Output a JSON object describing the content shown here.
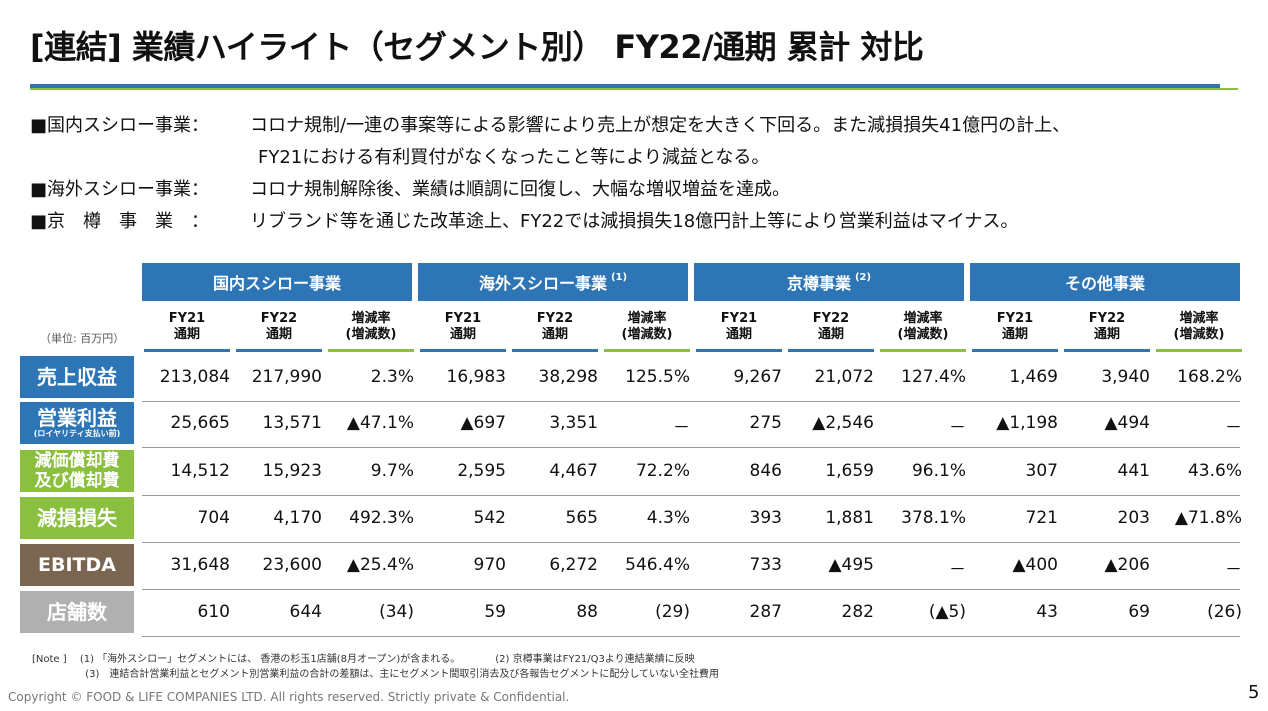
{
  "title": "[連結] 業績ハイライト（セグメント別） FY22/通期  累計 対比",
  "bullets": [
    {
      "head": "■国内スシロー事業：",
      "text": "コロナ規制/一連の事案等による影響により売上が想定を大きく下回る。また減損損失41億円の計上、"
    },
    {
      "head": "",
      "text": "FY21における有利買付がなくなったこと等により減益となる。"
    },
    {
      "head": "■海外スシロー事業：",
      "text": "コロナ規制解除後、業績は順調に回復し、大幅な増収増益を達成。"
    },
    {
      "head": "■京　樽　事　業　：",
      "text": "リブランド等を通じた改革途上、FY22では減損損失18億円計上等により営業利益はマイナス。"
    }
  ],
  "unit_label": "（単位: 百万円）",
  "segments": [
    {
      "name": "国内スシロー事業",
      "note": ""
    },
    {
      "name": "海外スシロー事業",
      "note": "(1)"
    },
    {
      "name": "京樽事業",
      "note": "(2)"
    },
    {
      "name": "その他事業",
      "note": ""
    }
  ],
  "col_headers": {
    "fy21_line1": "FY21",
    "fy21_line2": "通期",
    "fy22_line1": "FY22",
    "fy22_line2": "通期",
    "rate_line1": "増減率",
    "rate_line2": "(増減数)"
  },
  "rows": [
    {
      "label": "売上収益",
      "sublabel": "",
      "color": "#2e75b6",
      "values": [
        "213,084",
        "217,990",
        "2.3%",
        "16,983",
        "38,298",
        "125.5%",
        "9,267",
        "21,072",
        "127.4%",
        "1,469",
        "3,940",
        "168.2%"
      ]
    },
    {
      "label": "営業利益",
      "sublabel": "(ロイヤリティ支払い前)",
      "color": "#2e75b6",
      "values": [
        "25,665",
        "13,571",
        "▲47.1%",
        "▲697",
        "3,351",
        "－",
        "275",
        "▲2,546",
        "－",
        "▲1,198",
        "▲494",
        "－"
      ]
    },
    {
      "label": "減価償却費",
      "sublabel": "及び償却費",
      "color": "#8bbf3f",
      "values": [
        "14,512",
        "15,923",
        "9.7%",
        "2,595",
        "4,467",
        "72.2%",
        "846",
        "1,659",
        "96.1%",
        "307",
        "441",
        "43.6%"
      ]
    },
    {
      "label": "減損損失",
      "sublabel": "",
      "color": "#8bbf3f",
      "values": [
        "704",
        "4,170",
        "492.3%",
        "542",
        "565",
        "4.3%",
        "393",
        "1,881",
        "378.1%",
        "721",
        "203",
        "▲71.8%"
      ]
    },
    {
      "label": "EBITDA",
      "sublabel": "",
      "color": "#7a6550",
      "values": [
        "31,648",
        "23,600",
        "▲25.4%",
        "970",
        "6,272",
        "546.4%",
        "733",
        "▲495",
        "－",
        "▲400",
        "▲206",
        "－"
      ]
    },
    {
      "label": "店舗数",
      "sublabel": "",
      "color": "#b0b0b0",
      "values": [
        "610",
        "644",
        "(34)",
        "59",
        "88",
        "(29)",
        "287",
        "282",
        "(▲5)",
        "43",
        "69",
        "(26)"
      ]
    }
  ],
  "notes": {
    "line1": "[Note ]　 (1) 「海外スシロー」セグメントには、 香港の杉玉1店舗(8月オープン)が含まれる。　　　　(2) 京樽事業はFY21/Q3より連結業績に反映",
    "line2": "　　　　　 (3)　連結合計営業利益とセグメント別営業利益の合計の差額は、主にセグメント間取引消去及び各報告セグメントに配分していない全社費用"
  },
  "copyright": "Copyright © FOOD & LIFE COMPANIES LTD. All rights reserved. Strictly private & Confidential.",
  "page_number": "5"
}
